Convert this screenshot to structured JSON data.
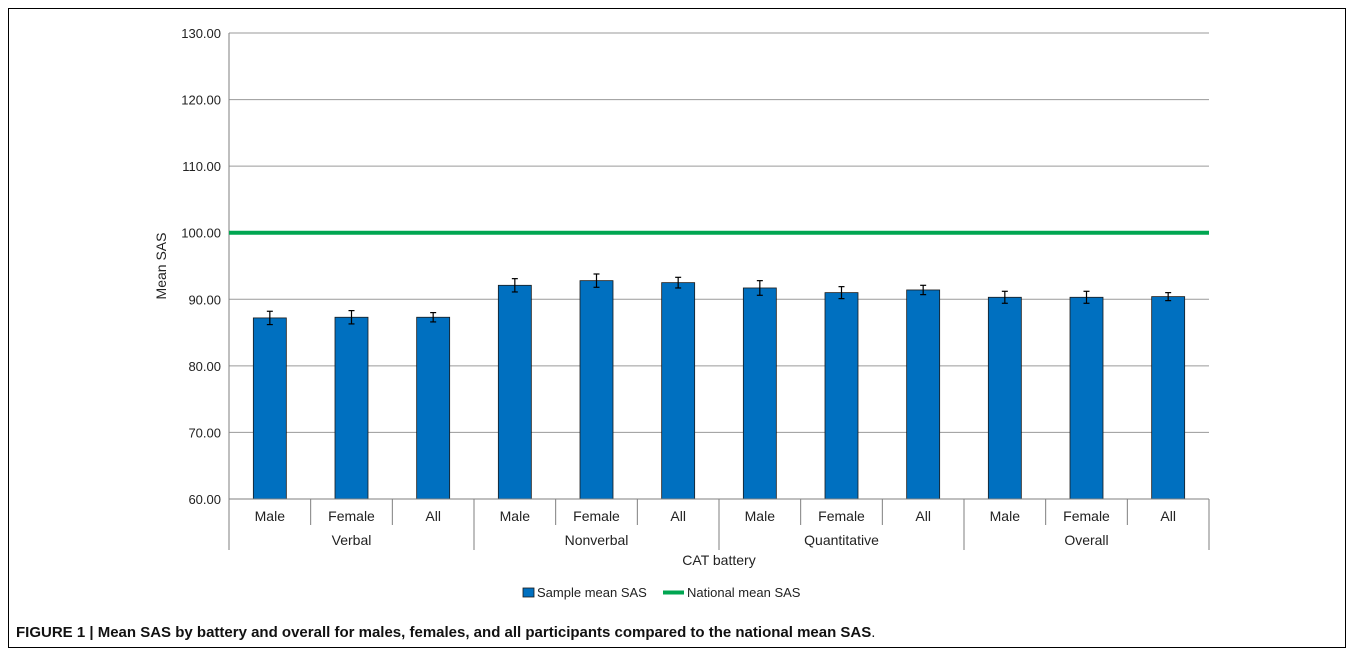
{
  "chart_data": {
    "type": "bar",
    "title": "",
    "xlabel": "CAT  battery",
    "ylabel": "Mean SAS",
    "ylim": [
      60,
      130
    ],
    "yticks": [
      "60.00",
      "70.00",
      "80.00",
      "90.00",
      "100.00",
      "110.00",
      "120.00",
      "130.00"
    ],
    "grid": true,
    "groups": [
      "Verbal",
      "Nonverbal",
      "Quantitative",
      "Overall"
    ],
    "subcategories": [
      "Male",
      "Female",
      "All"
    ],
    "series": [
      {
        "name": "Sample mean SAS",
        "color": "#0070c0",
        "values": [
          87.2,
          87.3,
          87.3,
          92.1,
          92.8,
          92.5,
          91.7,
          91.0,
          91.4,
          90.3,
          90.3,
          90.4
        ],
        "errors": [
          1.0,
          1.0,
          0.7,
          1.0,
          1.0,
          0.8,
          1.1,
          0.9,
          0.7,
          0.9,
          0.9,
          0.6
        ]
      }
    ],
    "reference_line": {
      "name": "National mean SAS",
      "value": 100,
      "color": "#00a651"
    },
    "legend_position": "bottom-center"
  },
  "caption": {
    "bold": "FIGURE 1 | Mean SAS by battery and overall for males, females, and all participants compared to the national mean SAS",
    "end": "."
  }
}
